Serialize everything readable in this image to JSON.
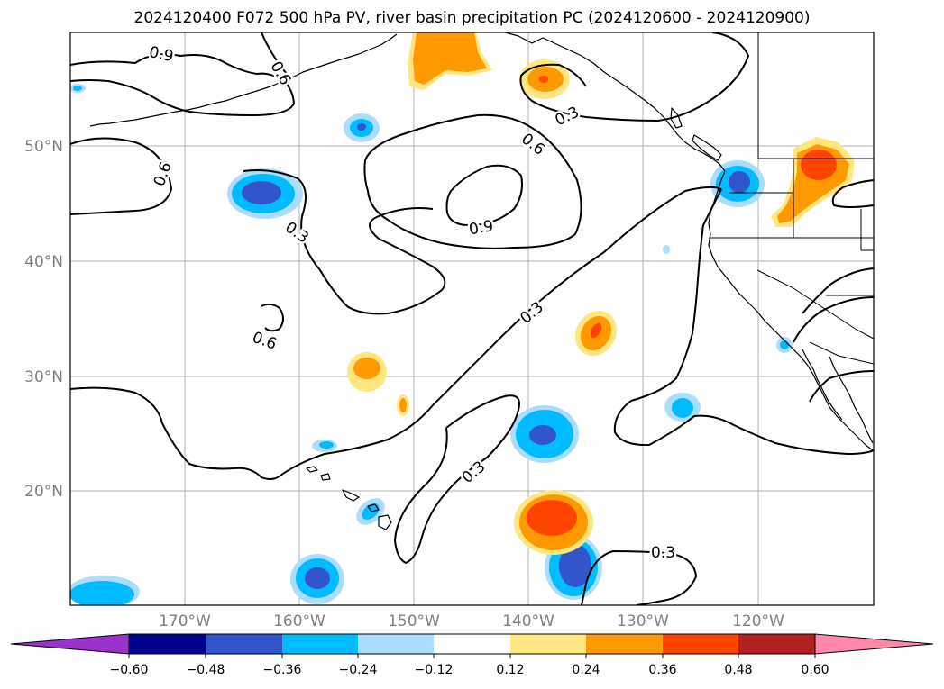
{
  "title": "2024120400 F072 500 hPa PV, river basin precipitation PC (2024120600 - 2024120900)",
  "lat_labels": [
    "50°N",
    "40°N",
    "30°N",
    "20°N"
  ],
  "lon_labels": [
    "170°W",
    "160°W",
    "150°W",
    "140°W",
    "130°W",
    "120°W"
  ],
  "contour_labels": [
    "0.9",
    "0.6",
    "0.6",
    "0.6",
    "0.9",
    "0.3",
    "0.3",
    "0.3",
    "0.6",
    "0.3",
    "0.3"
  ],
  "colorbar": {
    "ticks": [
      "−0.60",
      "−0.48",
      "−0.36",
      "−0.24",
      "−0.12",
      "0.12",
      "0.24",
      "0.36",
      "0.48",
      "0.60"
    ],
    "colors": [
      "#9933cc",
      "#000090",
      "#3355cc",
      "#00bbff",
      "#aaddff",
      "#ffffff",
      "#ffe680",
      "#ff9900",
      "#ff4400",
      "#b22222",
      "#ff88aa"
    ]
  },
  "colors": {
    "neg_light": "#aaddff",
    "neg_mid": "#00bbff",
    "neg_strong": "#3355cc",
    "pos_light": "#ffe680",
    "pos_mid": "#ff9900",
    "pos_strong": "#ff4400",
    "grid": "#b0b0b0",
    "tick_label": "#808080"
  }
}
